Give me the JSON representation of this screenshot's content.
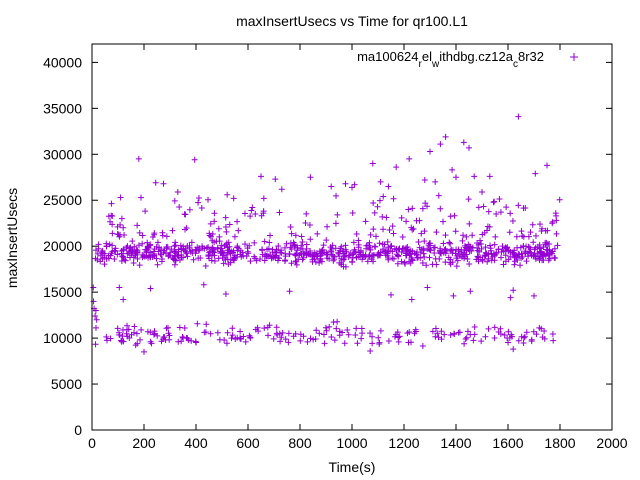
{
  "chart_data": {
    "type": "scatter",
    "title": "maxInsertUsecs vs Time for qr100.L1",
    "xlabel": "Time(s)",
    "ylabel": "maxInsertUsecs",
    "xlim": [
      0,
      2000
    ],
    "ylim": [
      0,
      42000
    ],
    "xticks": [
      0,
      200,
      400,
      600,
      800,
      1000,
      1200,
      1400,
      1600,
      1800,
      2000
    ],
    "yticks": [
      0,
      5000,
      10000,
      15000,
      20000,
      25000,
      30000,
      35000,
      40000
    ],
    "legend": {
      "position": "top-right",
      "marker": "+",
      "label_parts": [
        "ma100624",
        "r",
        "el",
        "w",
        "ithdbg.cz12a",
        "c",
        "8r32"
      ]
    },
    "series": [
      {
        "name": "ma100624_rel_withdbg.cz12a_c8r32",
        "color": "#9400d3",
        "marker": "+",
        "band_main": {
          "x_range": [
            10,
            1800
          ],
          "y_min": 17500,
          "y_max": 21000,
          "count": 760
        },
        "band_low": {
          "x_range": [
            10,
            1780
          ],
          "y_min": 8600,
          "y_max": 12000,
          "count": 210
        },
        "points": [
          [
            5,
            15500
          ],
          [
            6,
            14000
          ],
          [
            8,
            13200
          ],
          [
            12,
            12400
          ],
          [
            15,
            13000
          ],
          [
            18,
            12000
          ],
          [
            110,
            25300
          ],
          [
            115,
            23000
          ],
          [
            120,
            22000
          ],
          [
            180,
            29500
          ],
          [
            245,
            26900
          ],
          [
            275,
            26800
          ],
          [
            330,
            25900
          ],
          [
            395,
            29400
          ],
          [
            470,
            22700
          ],
          [
            520,
            25600
          ],
          [
            545,
            25200
          ],
          [
            650,
            27600
          ],
          [
            705,
            27300
          ],
          [
            730,
            26200
          ],
          [
            840,
            27500
          ],
          [
            920,
            26500
          ],
          [
            975,
            26800
          ],
          [
            1000,
            26400
          ],
          [
            1010,
            26700
          ],
          [
            1080,
            29000
          ],
          [
            1110,
            27000
          ],
          [
            1140,
            26500
          ],
          [
            1170,
            28600
          ],
          [
            1220,
            29500
          ],
          [
            1280,
            27200
          ],
          [
            1300,
            30300
          ],
          [
            1320,
            27000
          ],
          [
            1340,
            31100
          ],
          [
            1360,
            31900
          ],
          [
            1385,
            28300
          ],
          [
            1400,
            27500
          ],
          [
            1430,
            31300
          ],
          [
            1450,
            30700
          ],
          [
            1470,
            27600
          ],
          [
            1500,
            25900
          ],
          [
            1530,
            27600
          ],
          [
            1640,
            34100
          ],
          [
            1705,
            27900
          ],
          [
            1750,
            28800
          ],
          [
            1770,
            22500
          ],
          [
            1785,
            23300
          ],
          [
            105,
            15500
          ],
          [
            120,
            14200
          ],
          [
            225,
            15400
          ],
          [
            430,
            15800
          ],
          [
            515,
            14800
          ],
          [
            760,
            15100
          ],
          [
            1150,
            14700
          ],
          [
            1230,
            14200
          ],
          [
            1290,
            15500
          ],
          [
            1390,
            14600
          ],
          [
            1455,
            15100
          ],
          [
            1610,
            14400
          ],
          [
            1620,
            15200
          ],
          [
            1700,
            14600
          ],
          [
            200,
            8500
          ],
          [
            1070,
            8600
          ],
          [
            1620,
            8800
          ]
        ]
      }
    ]
  }
}
